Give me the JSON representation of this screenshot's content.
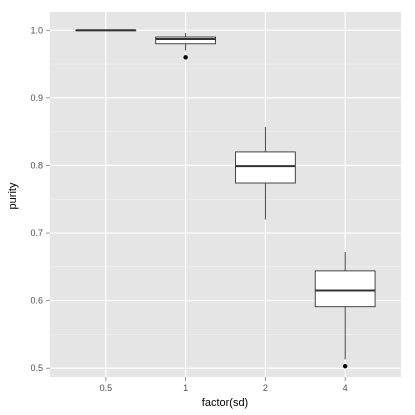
{
  "chart_data": {
    "type": "boxplot",
    "title": "",
    "xlabel": "factor(sd)",
    "ylabel": "purity",
    "categories": [
      "0.5",
      "1",
      "2",
      "4"
    ],
    "boxes": [
      {
        "category": "0.5",
        "whisker_low": 1.0,
        "q1": 1.0,
        "median": 1.0,
        "q3": 1.0,
        "whisker_high": 1.0,
        "outliers": []
      },
      {
        "category": "1",
        "whisker_low": 0.97,
        "q1": 0.98,
        "median": 0.987,
        "q3": 0.99,
        "whisker_high": 0.996,
        "outliers": [
          0.96
        ]
      },
      {
        "category": "2",
        "whisker_low": 0.72,
        "q1": 0.774,
        "median": 0.799,
        "q3": 0.82,
        "whisker_high": 0.857,
        "outliers": []
      },
      {
        "category": "4",
        "whisker_low": 0.513,
        "q1": 0.591,
        "median": 0.615,
        "q3": 0.644,
        "whisker_high": 0.672,
        "outliers": [
          0.503
        ]
      }
    ],
    "ylim": [
      0.487,
      1.027
    ],
    "yticks": [
      "0.5",
      "0.6",
      "0.7",
      "0.8",
      "0.9",
      "1.0"
    ],
    "ytick_values": [
      0.5,
      0.6,
      0.7,
      0.8,
      0.9,
      1.0
    ],
    "grid": true,
    "background": "#e5e5e5",
    "gridline_color": "#ffffff"
  }
}
